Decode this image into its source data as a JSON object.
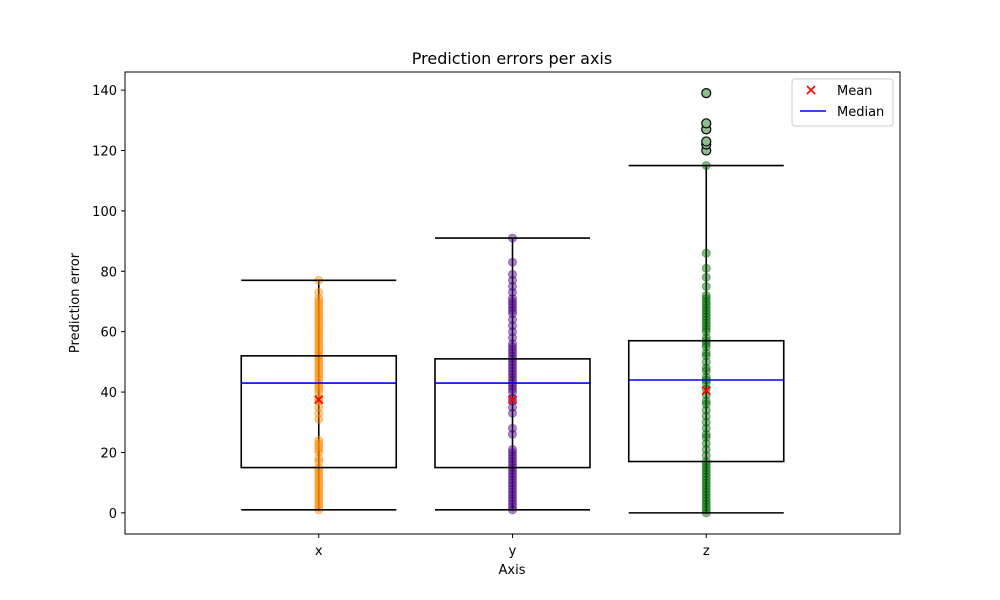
{
  "chart_data": {
    "type": "box",
    "title": "Prediction errors per axis",
    "xlabel": "Axis",
    "ylabel": "Prediction error",
    "ylim": [
      -7,
      146
    ],
    "yticks": [
      0,
      20,
      40,
      60,
      80,
      100,
      120,
      140
    ],
    "grid": false,
    "legend": {
      "placement": "top-right",
      "entries": [
        {
          "label": "Mean",
          "marker": "x",
          "color": "#ff0000"
        },
        {
          "label": "Median",
          "marker": "line",
          "color": "#0000ff"
        }
      ]
    },
    "categories": [
      "x",
      "y",
      "z"
    ],
    "boxes": [
      {
        "category": "x",
        "whisker_low": 1,
        "q1": 15,
        "median": 43,
        "q3": 52,
        "whisker_high": 77,
        "mean": 37.5,
        "point_color": "#ff8c00",
        "outliers": [],
        "points": [
          1,
          2,
          3,
          4,
          5,
          6,
          7,
          8,
          9,
          10,
          11,
          12,
          13,
          14,
          15,
          17,
          18,
          20,
          21,
          22,
          23,
          24,
          31,
          33,
          35,
          37,
          38,
          40,
          41,
          42,
          43,
          44,
          45,
          46,
          47,
          48,
          49,
          50,
          51,
          52,
          53,
          54,
          55,
          56,
          57,
          58,
          59,
          60,
          61,
          62,
          63,
          64,
          65,
          66,
          67,
          68,
          69,
          70,
          71,
          73,
          77
        ]
      },
      {
        "category": "y",
        "whisker_low": 1,
        "q1": 15,
        "median": 43,
        "q3": 51,
        "whisker_high": 91,
        "mean": 37.5,
        "point_color": "#4b0082",
        "outliers": [],
        "points": [
          1,
          2,
          3,
          4,
          5,
          6,
          7,
          8,
          9,
          10,
          11,
          12,
          13,
          14,
          15,
          16,
          17,
          18,
          19,
          20,
          21,
          26,
          28,
          33,
          35,
          37,
          38,
          40,
          41,
          42,
          43,
          44,
          45,
          46,
          47,
          48,
          49,
          50,
          51,
          52,
          53,
          54,
          55,
          56,
          58,
          60,
          62,
          64,
          66,
          67,
          68,
          69,
          70,
          71,
          73,
          75,
          77,
          79,
          83,
          91
        ]
      },
      {
        "category": "z",
        "whisker_low": 0,
        "q1": 17,
        "median": 44,
        "q3": 57,
        "whisker_high": 115,
        "mean": 40.5,
        "point_color": "#006400",
        "outlier_color": "#8fbc8f",
        "outliers": [
          120,
          122,
          123,
          127,
          129,
          139
        ],
        "points": [
          0,
          1,
          2,
          3,
          4,
          5,
          6,
          7,
          8,
          9,
          10,
          11,
          12,
          13,
          14,
          15,
          16,
          17,
          19,
          21,
          23,
          25,
          26,
          28,
          30,
          32,
          34,
          36,
          37,
          39,
          41,
          43,
          44,
          45,
          47,
          48,
          50,
          52,
          53,
          55,
          56,
          57,
          58,
          60,
          61,
          62,
          63,
          64,
          65,
          66,
          67,
          68,
          69,
          70,
          71,
          72,
          75,
          78,
          81,
          86,
          115
        ]
      }
    ]
  }
}
